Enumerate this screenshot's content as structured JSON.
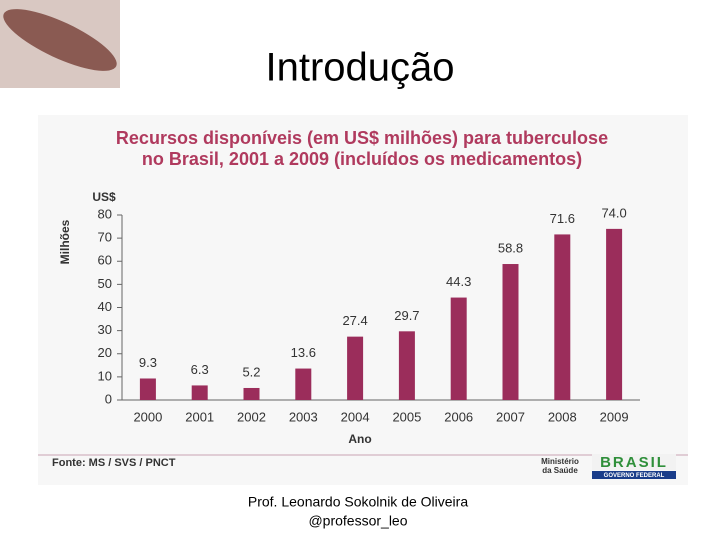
{
  "slide": {
    "title": "Introdução",
    "footer": [
      "Prof. Leonardo Sokolnik de Oliveira",
      "@professor_leo"
    ]
  },
  "chart_data": {
    "type": "bar",
    "title": [
      "Recursos disponíveis (em US$ milhões) para tuberculose",
      "no Brasil, 2001 a 2009 (incluídos os medicamentos)"
    ],
    "unit_label": "US$",
    "y_label": "Milhões",
    "x_label": "Ano",
    "categories": [
      "2000",
      "2001",
      "2002",
      "2003",
      "2004",
      "2005",
      "2006",
      "2007",
      "2008",
      "2009"
    ],
    "values": [
      9.3,
      6.3,
      5.2,
      13.6,
      27.4,
      29.7,
      44.3,
      58.8,
      71.6,
      74.0
    ],
    "value_labels": [
      "9.3",
      "6.3",
      "5.2",
      "13.6",
      "27.4",
      "29.7",
      "44.3",
      "58.8",
      "71.6",
      "74.0"
    ],
    "color": "#9b2d5b",
    "ylim": [
      0,
      80
    ],
    "yticks": [
      0,
      10,
      20,
      30,
      40,
      50,
      60,
      70,
      80
    ],
    "source": "Fonte: MS / SVS / PNCT"
  },
  "logos": {
    "ministry": [
      "Ministério",
      "da Saúde"
    ],
    "brasil": "BRASIL",
    "government": "GOVERNO FEDERAL"
  }
}
